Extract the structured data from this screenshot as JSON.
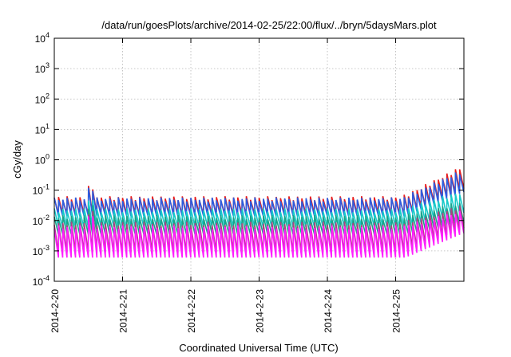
{
  "chart_data": {
    "type": "line",
    "title": "/data/run/goesPlots/archive/2014-02-25/22:00/flux/../bryn/5daysMars.plot",
    "xlabel": "Coordinated Universal Time (UTC)",
    "ylabel": "cGy/day",
    "y_scale": "log",
    "ylim": [
      0.0001,
      10000
    ],
    "y_ticks": [
      {
        "value": 0.0001,
        "mantissa": "10",
        "exponent": "-4"
      },
      {
        "value": 0.001,
        "mantissa": "10",
        "exponent": "-3"
      },
      {
        "value": 0.01,
        "mantissa": "10",
        "exponent": "-2"
      },
      {
        "value": 0.1,
        "mantissa": "10",
        "exponent": "-1"
      },
      {
        "value": 1,
        "mantissa": "10",
        "exponent": "0"
      },
      {
        "value": 10,
        "mantissa": "10",
        "exponent": "1"
      },
      {
        "value": 100,
        "mantissa": "10",
        "exponent": "2"
      },
      {
        "value": 1000,
        "mantissa": "10",
        "exponent": "3"
      },
      {
        "value": 10000,
        "mantissa": "10",
        "exponent": "4"
      }
    ],
    "xlim": [
      "2014-02-20 00:00",
      "2014-02-25 23:59"
    ],
    "x_tick_labels": [
      "2014-2-20",
      "2014-2-21",
      "2014-2-22",
      "2014-2-23",
      "2014-2-24",
      "2014-2-25"
    ],
    "grid": true,
    "sawtooth_period_hours": 1.5,
    "series": [
      {
        "color": "#e81c1c",
        "base_peak": 0.055,
        "base_trough": 0.016,
        "late_peak": 0.6
      },
      {
        "color": "#2c5de0",
        "base_peak": 0.05,
        "base_trough": 0.014,
        "late_peak": 0.45
      },
      {
        "color": "#17c9c9",
        "base_peak": 0.022,
        "base_trough": 0.006,
        "late_peak": 0.09
      },
      {
        "color": "#19a38a",
        "base_peak": 0.013,
        "base_trough": 0.0035,
        "late_peak": 0.04
      },
      {
        "color": "#b0407f",
        "base_peak": 0.008,
        "base_trough": 0.0009,
        "late_peak": 0.03
      },
      {
        "color": "#ff1eff",
        "base_peak": 0.006,
        "base_trough": 0.0006,
        "late_peak": 0.02
      }
    ]
  }
}
